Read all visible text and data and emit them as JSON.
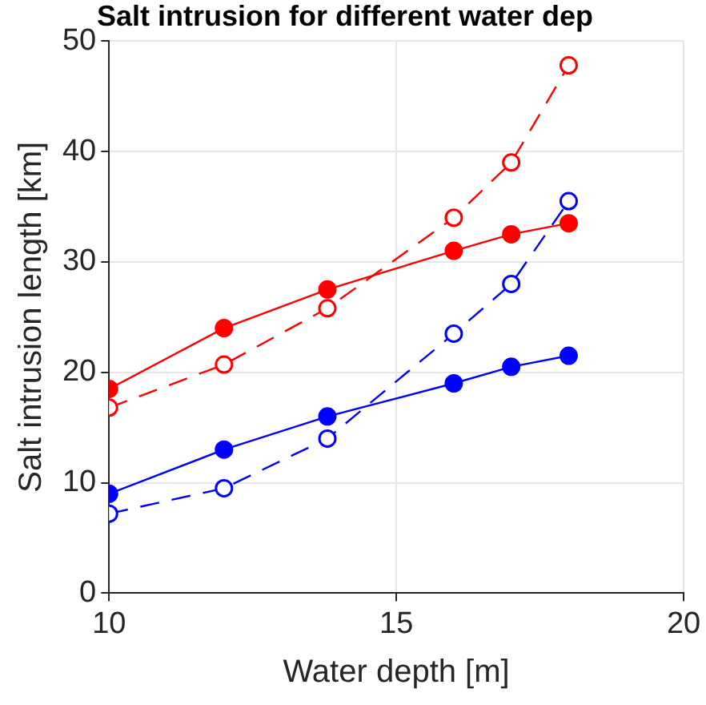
{
  "chart_data": {
    "type": "line",
    "title": "Salt intrusion for different water dep",
    "xlabel": "Water depth [m]",
    "ylabel": "Salt intrusion length [km]",
    "x": [
      10,
      12,
      13.8,
      16,
      17,
      18
    ],
    "series": [
      {
        "color": "#ff0000",
        "line_style": "solid",
        "marker": "circle",
        "values": [
          18.5,
          24,
          27.5,
          31,
          32.5,
          33.5
        ]
      },
      {
        "color": "#ff0000",
        "line_style": "dashed",
        "marker": "circle",
        "values": [
          16.8,
          20.7,
          25.8,
          34,
          39,
          47.8
        ]
      },
      {
        "color": "#0000ff",
        "line_style": "solid",
        "marker": "circle",
        "values": [
          9,
          13,
          16,
          19,
          20.5,
          21.5
        ]
      },
      {
        "color": "#0000ff",
        "line_style": "dashed",
        "marker": "circle",
        "values": [
          7.2,
          9.5,
          14,
          23.5,
          28,
          35.5
        ]
      }
    ],
    "xlim": [
      10,
      20
    ],
    "xticks": [
      10,
      15,
      20
    ],
    "ylim": [
      0,
      50
    ],
    "yticks": [
      0,
      10,
      20,
      30,
      40,
      50
    ],
    "grid": true,
    "legend": false
  }
}
